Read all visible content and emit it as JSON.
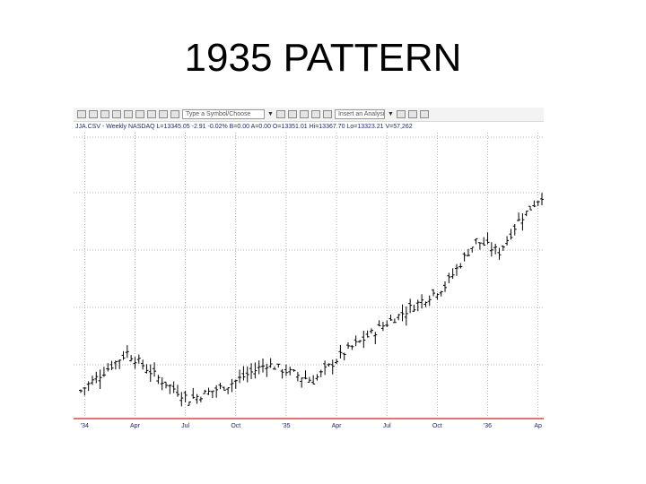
{
  "slide": {
    "title": "1935 PATTERN"
  },
  "toolbar": {
    "symbol_combo": "Type a Symbol/Choose",
    "study_combo": "Insert an Analysis Stu",
    "icons": [
      "new-chart-icon",
      "open-icon",
      "save-icon",
      "print-icon",
      "copy-icon",
      "crosshair-icon",
      "zoom-icon",
      "cursor-icon",
      "refresh-icon",
      "draw-line-icon",
      "text-icon",
      "indicator-icon",
      "period-icon",
      "settings-icon"
    ]
  },
  "info_line": {
    "text": "JJA.CSV - Weekly NASDAQ  L=13345.05 -2.91 -0.02%  B=0.00  A=0.00  O=13351.01  Hi=13367.70  Lo=13323.21  V=57,262"
  },
  "colors": {
    "bars": "#000000",
    "grid": "#9a9a9a",
    "baseline": "#d42020",
    "axis_text": "#1f2a6b"
  },
  "chart_data": {
    "type": "bar",
    "style": "ohlc",
    "title": "1935 PATTERN",
    "x_tick_labels": [
      "'34",
      "Apr",
      "Jul",
      "Oct",
      "'35",
      "Apr",
      "Jul",
      "Oct",
      "'36",
      "Ap"
    ],
    "xlabel": "",
    "ylabel": "",
    "grid": true,
    "y_axis_visible": false,
    "bar_count": 120,
    "key_points": [
      {
        "week": 0,
        "close": 14
      },
      {
        "week": 12,
        "close": 41
      },
      {
        "week": 20,
        "close": 23
      },
      {
        "week": 28,
        "close": 8
      },
      {
        "week": 38,
        "close": 18
      },
      {
        "week": 48,
        "close": 33
      },
      {
        "week": 60,
        "close": 21
      },
      {
        "week": 68,
        "close": 41
      },
      {
        "week": 78,
        "close": 60
      },
      {
        "week": 94,
        "close": 88
      },
      {
        "week": 102,
        "close": 120
      },
      {
        "week": 108,
        "close": 112
      },
      {
        "week": 113,
        "close": 134
      },
      {
        "week": 119,
        "close": 152
      }
    ],
    "ylim": [
      -5,
      195
    ]
  }
}
